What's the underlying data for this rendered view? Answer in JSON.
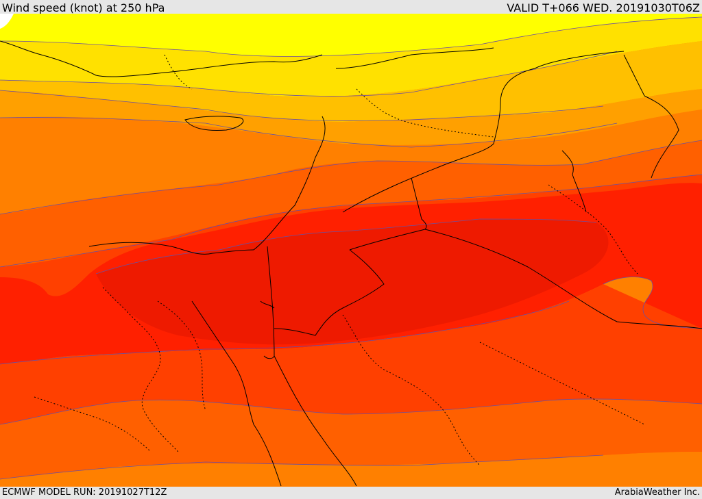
{
  "header": {
    "title": "Wind speed (knot) at 250 hPa",
    "valid": "VALID T+066 WED. 20191030T06Z"
  },
  "footer": {
    "model_run": "ECMWF MODEL RUN: 20191027T12Z",
    "brand": "ArabiaWeather Inc."
  },
  "colors": {
    "band_1": "#ffffff",
    "band_2": "#ffff00",
    "band_3": "#ffe100",
    "band_4": "#ffc000",
    "band_5": "#ffa000",
    "band_6": "#ff8000",
    "band_7": "#ff6000",
    "band_8": "#ff4000",
    "band_9": "#ff2000",
    "band_10": "#ee1a00",
    "contour": "#6b4fa0",
    "coastline": "#000000",
    "bar_background": "#e6e6e6"
  }
}
